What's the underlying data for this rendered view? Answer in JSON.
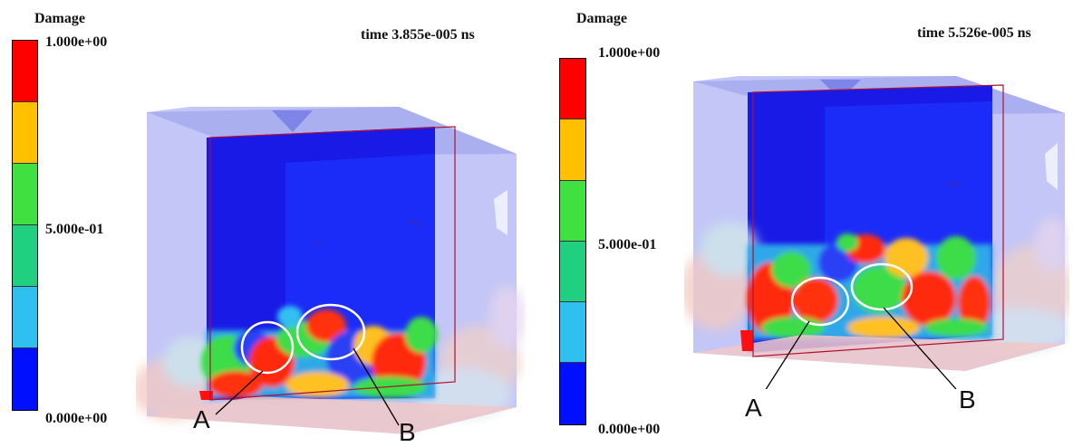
{
  "colorbar": {
    "segments": [
      "#ff0000",
      "#ffc000",
      "#40e040",
      "#20d080",
      "#30c0f0",
      "#0010ff"
    ],
    "min_label": "0.000e+00",
    "mid_label": "5.000e-01",
    "max_label": "1.000e+00"
  },
  "panels": [
    {
      "legend_title": "Damage",
      "time": "time 3.855e-005 ns",
      "label_a": "A",
      "label_b": "B"
    },
    {
      "legend_title": "Damage",
      "time": "time 5.526e-005 ns",
      "label_a": "A",
      "label_b": "B"
    }
  ]
}
